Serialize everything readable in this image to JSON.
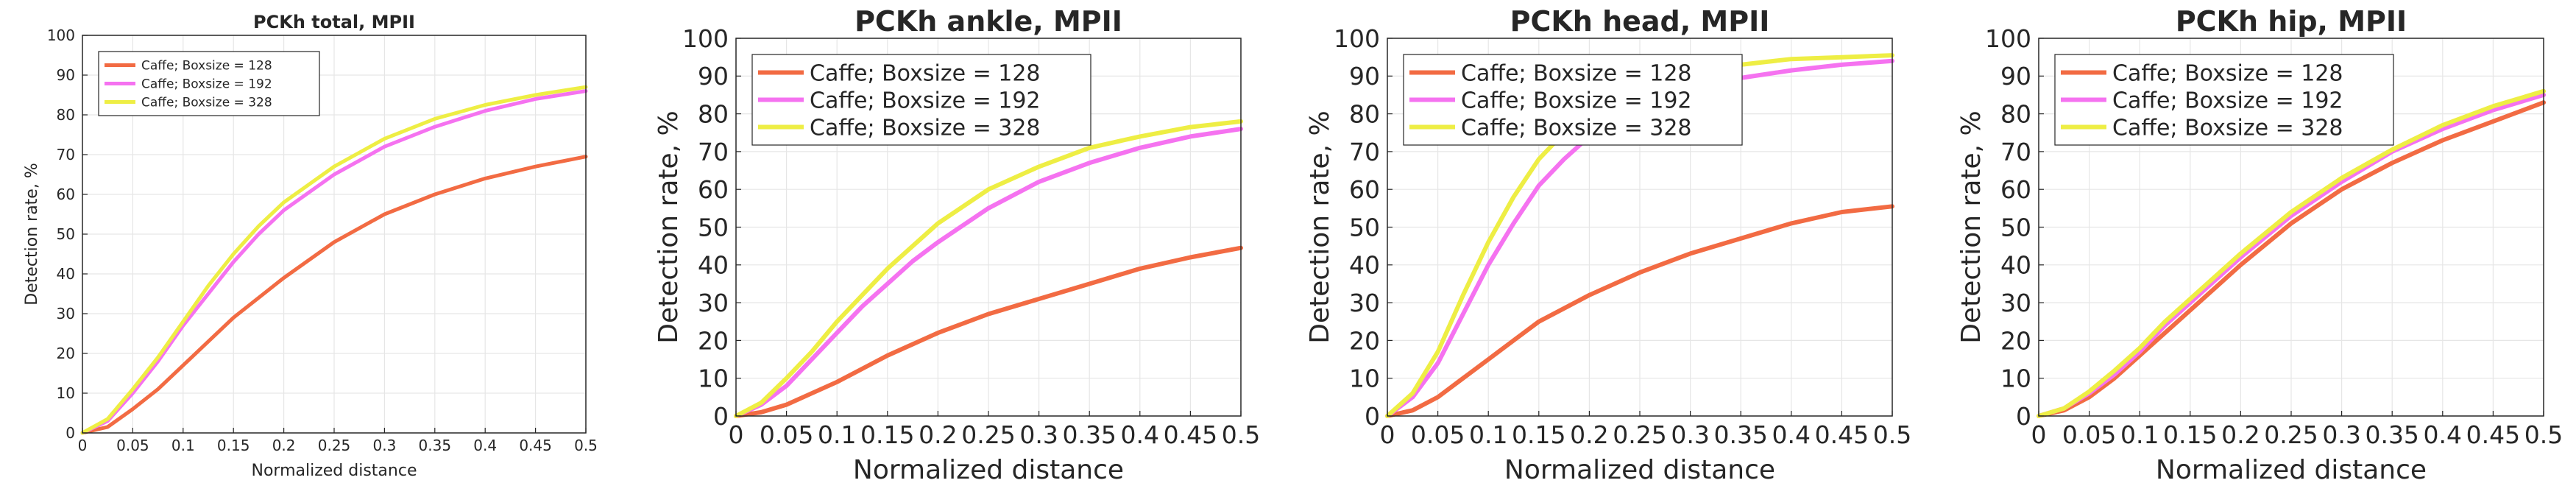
{
  "colors": {
    "s128": "#f26b43",
    "s192": "#f572f0",
    "s328": "#eeee44",
    "grid": "#e6e6e6",
    "axis": "#262626"
  },
  "chart_data": [
    {
      "type": "line",
      "title": "PCKh total, MPII",
      "xlabel": "Normalized distance",
      "ylabel": "Detection rate, %",
      "xlim": [
        0,
        0.5
      ],
      "ylim": [
        0,
        100
      ],
      "x_ticks": [
        "0",
        "0.05",
        "0.1",
        "0.15",
        "0.2",
        "0.25",
        "0.3",
        "0.35",
        "0.4",
        "0.45",
        "0.5"
      ],
      "y_ticks": [
        "0",
        "10",
        "20",
        "30",
        "40",
        "50",
        "60",
        "70",
        "80",
        "90",
        "100"
      ],
      "grid": true,
      "legend": "top-left",
      "x": [
        0,
        0.025,
        0.05,
        0.075,
        0.1,
        0.125,
        0.15,
        0.175,
        0.2,
        0.25,
        0.3,
        0.35,
        0.4,
        0.45,
        0.5
      ],
      "series": [
        {
          "name": "Caffe; Boxsize = 128",
          "values": [
            0,
            1.5,
            6,
            11,
            17,
            23,
            29,
            34,
            39,
            48,
            55,
            60,
            64,
            67,
            69.5
          ]
        },
        {
          "name": "Caffe; Boxsize = 192",
          "values": [
            0,
            3,
            10,
            18,
            27,
            35,
            43,
            50,
            56,
            65,
            72,
            77,
            81,
            84,
            86
          ]
        },
        {
          "name": "Caffe; Boxsize = 328",
          "values": [
            0,
            3.5,
            11,
            19,
            28,
            37,
            45,
            52,
            58,
            67,
            74,
            79,
            82.5,
            85,
            87
          ]
        }
      ]
    },
    {
      "type": "line",
      "title": "PCKh ankle, MPII",
      "xlabel": "Normalized distance",
      "ylabel": "Detection rate, %",
      "xlim": [
        0,
        0.5
      ],
      "ylim": [
        0,
        100
      ],
      "x_ticks": [
        "0",
        "0.05",
        "0.1",
        "0.15",
        "0.2",
        "0.25",
        "0.3",
        "0.35",
        "0.4",
        "0.45",
        "0.5"
      ],
      "y_ticks": [
        "0",
        "10",
        "20",
        "30",
        "40",
        "50",
        "60",
        "70",
        "80",
        "90",
        "100"
      ],
      "grid": true,
      "legend": "top-left",
      "x": [
        0,
        0.025,
        0.05,
        0.075,
        0.1,
        0.125,
        0.15,
        0.175,
        0.2,
        0.25,
        0.3,
        0.35,
        0.4,
        0.45,
        0.5
      ],
      "series": [
        {
          "name": "Caffe; Boxsize = 128",
          "values": [
            0,
            1,
            3,
            6,
            9,
            12.5,
            16,
            19,
            22,
            27,
            31,
            35,
            39,
            42,
            44.5
          ]
        },
        {
          "name": "Caffe; Boxsize = 192",
          "values": [
            0,
            3,
            8,
            15,
            22,
            29,
            35,
            41,
            46,
            55,
            62,
            67,
            71,
            74,
            76
          ]
        },
        {
          "name": "Caffe; Boxsize = 328",
          "values": [
            0,
            3.5,
            10,
            17,
            25,
            32,
            39,
            45,
            51,
            60,
            66,
            71,
            74,
            76.5,
            78
          ]
        }
      ]
    },
    {
      "type": "line",
      "title": "PCKh head, MPII",
      "xlabel": "Normalized distance",
      "ylabel": "Detection rate, %",
      "xlim": [
        0,
        0.5
      ],
      "ylim": [
        0,
        100
      ],
      "x_ticks": [
        "0",
        "0.05",
        "0.1",
        "0.15",
        "0.2",
        "0.25",
        "0.3",
        "0.35",
        "0.4",
        "0.45",
        "0.5"
      ],
      "y_ticks": [
        "0",
        "10",
        "20",
        "30",
        "40",
        "50",
        "60",
        "70",
        "80",
        "90",
        "100"
      ],
      "grid": true,
      "legend": "top-left",
      "x": [
        0,
        0.025,
        0.05,
        0.075,
        0.1,
        0.125,
        0.15,
        0.175,
        0.2,
        0.25,
        0.3,
        0.35,
        0.4,
        0.45,
        0.5
      ],
      "series": [
        {
          "name": "Caffe; Boxsize = 128",
          "values": [
            0,
            1.5,
            5,
            10,
            15,
            20,
            25,
            28.5,
            32,
            38,
            43,
            47,
            51,
            54,
            55.5
          ]
        },
        {
          "name": "Caffe; Boxsize = 192",
          "values": [
            0,
            5,
            14,
            27,
            40,
            51,
            61,
            68,
            74,
            82,
            87,
            89.5,
            91.5,
            93,
            94
          ]
        },
        {
          "name": "Caffe; Boxsize = 328",
          "values": [
            0,
            6,
            17,
            32,
            46,
            58,
            68,
            75,
            80,
            87,
            91,
            93,
            94.5,
            95,
            95.5
          ]
        }
      ]
    },
    {
      "type": "line",
      "title": "PCKh hip, MPII",
      "xlabel": "Normalized distance",
      "ylabel": "Detection rate, %",
      "xlim": [
        0,
        0.5
      ],
      "ylim": [
        0,
        100
      ],
      "x_ticks": [
        "0",
        "0.05",
        "0.1",
        "0.15",
        "0.2",
        "0.25",
        "0.3",
        "0.35",
        "0.4",
        "0.45",
        "0.5"
      ],
      "y_ticks": [
        "0",
        "10",
        "20",
        "30",
        "40",
        "50",
        "60",
        "70",
        "80",
        "90",
        "100"
      ],
      "grid": true,
      "legend": "top-left",
      "x": [
        0,
        0.025,
        0.05,
        0.075,
        0.1,
        0.125,
        0.15,
        0.175,
        0.2,
        0.25,
        0.3,
        0.35,
        0.4,
        0.45,
        0.5
      ],
      "series": [
        {
          "name": "Caffe; Boxsize = 128",
          "values": [
            0,
            1.5,
            5,
            10,
            16,
            22,
            28,
            34,
            40,
            51,
            60,
            67,
            73,
            78,
            83
          ]
        },
        {
          "name": "Caffe; Boxsize = 192",
          "values": [
            0,
            2,
            6,
            11,
            17,
            24,
            30,
            36,
            42,
            53,
            62,
            70,
            76,
            81,
            85
          ]
        },
        {
          "name": "Caffe; Boxsize = 328",
          "values": [
            0,
            2,
            6.5,
            12,
            18,
            25,
            31,
            37,
            43,
            54,
            63,
            70.5,
            77,
            82,
            86
          ]
        }
      ]
    }
  ]
}
